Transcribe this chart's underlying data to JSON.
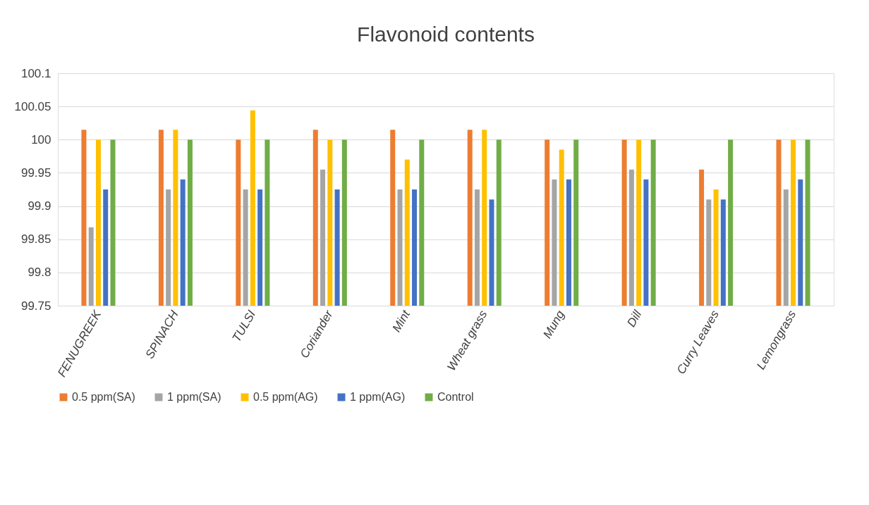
{
  "chart_data": {
    "type": "bar",
    "title": "Flavonoid contents",
    "categories": [
      "FENUGREEK",
      "SPINACH",
      "TULSI",
      "Coriander",
      "Mint",
      "Wheat grass",
      "Mung",
      "Dill",
      "Curry Leaves",
      "Lemongrass"
    ],
    "series": [
      {
        "name": "0.5 ppm(SA)",
        "color": "#ed7d31",
        "values": [
          100.015,
          100.015,
          100,
          100.015,
          100.015,
          100.015,
          100,
          100,
          99.955,
          100
        ]
      },
      {
        "name": "1 ppm(SA)",
        "color": "#a5a5a5",
        "values": [
          99.868,
          99.925,
          99.925,
          99.955,
          99.925,
          99.925,
          99.94,
          99.955,
          99.91,
          99.925
        ]
      },
      {
        "name": "0.5 ppm(AG)",
        "color": "#ffc000",
        "values": [
          100,
          100.015,
          100.044,
          100,
          99.97,
          100.015,
          99.985,
          100,
          99.925,
          100
        ]
      },
      {
        "name": "1 ppm(AG)",
        "color": "#4472c4",
        "values": [
          99.925,
          99.94,
          99.925,
          99.925,
          99.925,
          99.91,
          99.94,
          99.94,
          99.91,
          99.94
        ]
      },
      {
        "name": "Control",
        "color": "#70ad47",
        "values": [
          100,
          100,
          100,
          100,
          100,
          100,
          100,
          100,
          100,
          100
        ]
      }
    ],
    "ylim": [
      99.75,
      100.1
    ],
    "yticks": [
      99.75,
      99.8,
      99.85,
      99.9,
      99.95,
      100,
      100.05,
      100.1
    ],
    "grid": "y",
    "legend": "bottom"
  }
}
